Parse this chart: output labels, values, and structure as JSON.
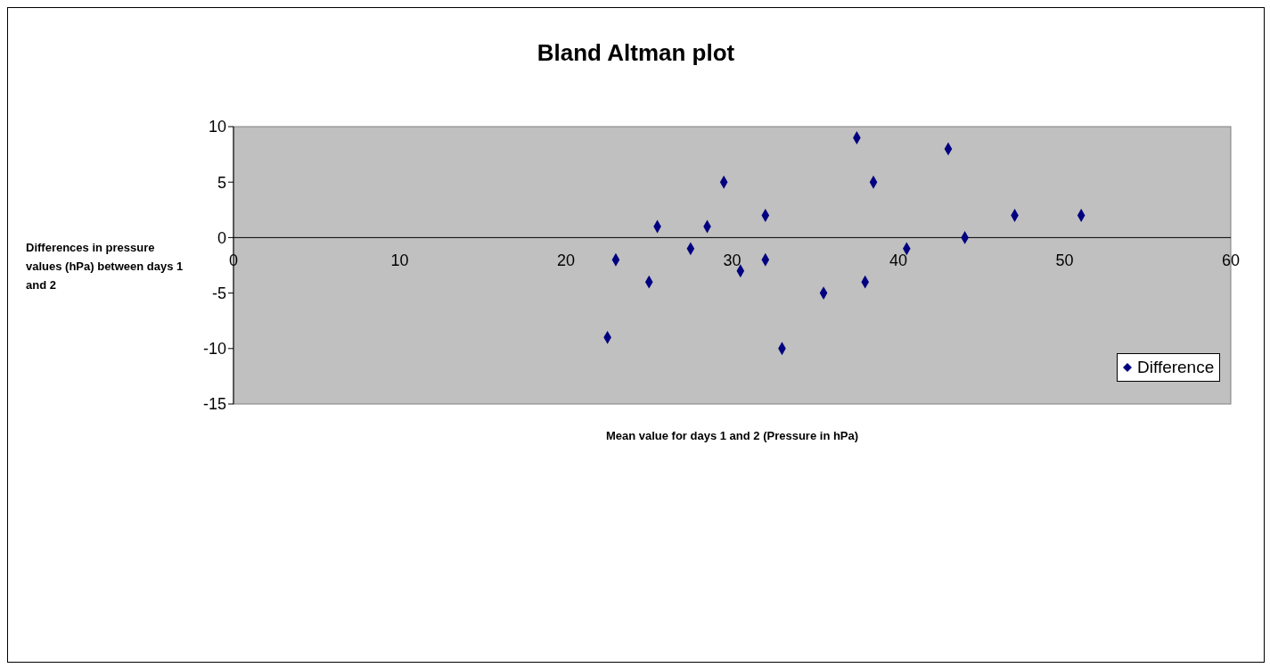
{
  "chart_data": {
    "type": "scatter",
    "title": "Bland Altman plot",
    "xlabel": "Mean value for days 1 and 2 (Pressure in hPa)",
    "ylabel": "Differences in pressure values (hPa) between days 1 and 2",
    "x": [
      22.5,
      23,
      25,
      25.5,
      27.5,
      28.5,
      29.5,
      30.5,
      32,
      32,
      33,
      35.5,
      37.5,
      38,
      38.5,
      40.5,
      43,
      44,
      47,
      51
    ],
    "series": [
      {
        "name": "Difference",
        "color": "#000080",
        "values": [
          -9,
          -2,
          -4,
          1,
          -1,
          1,
          5,
          -3,
          2,
          -2,
          -10,
          -5,
          9,
          -4,
          5,
          -1,
          8,
          0,
          2,
          2
        ]
      }
    ],
    "xlim": [
      0,
      60
    ],
    "xticks": [
      0,
      10,
      20,
      30,
      40,
      50,
      60
    ],
    "ylim": [
      -15,
      10
    ],
    "yticks": [
      -15,
      -10,
      -5,
      0,
      5,
      10
    ],
    "grid": false,
    "legend": "right",
    "marker": "diamond"
  }
}
